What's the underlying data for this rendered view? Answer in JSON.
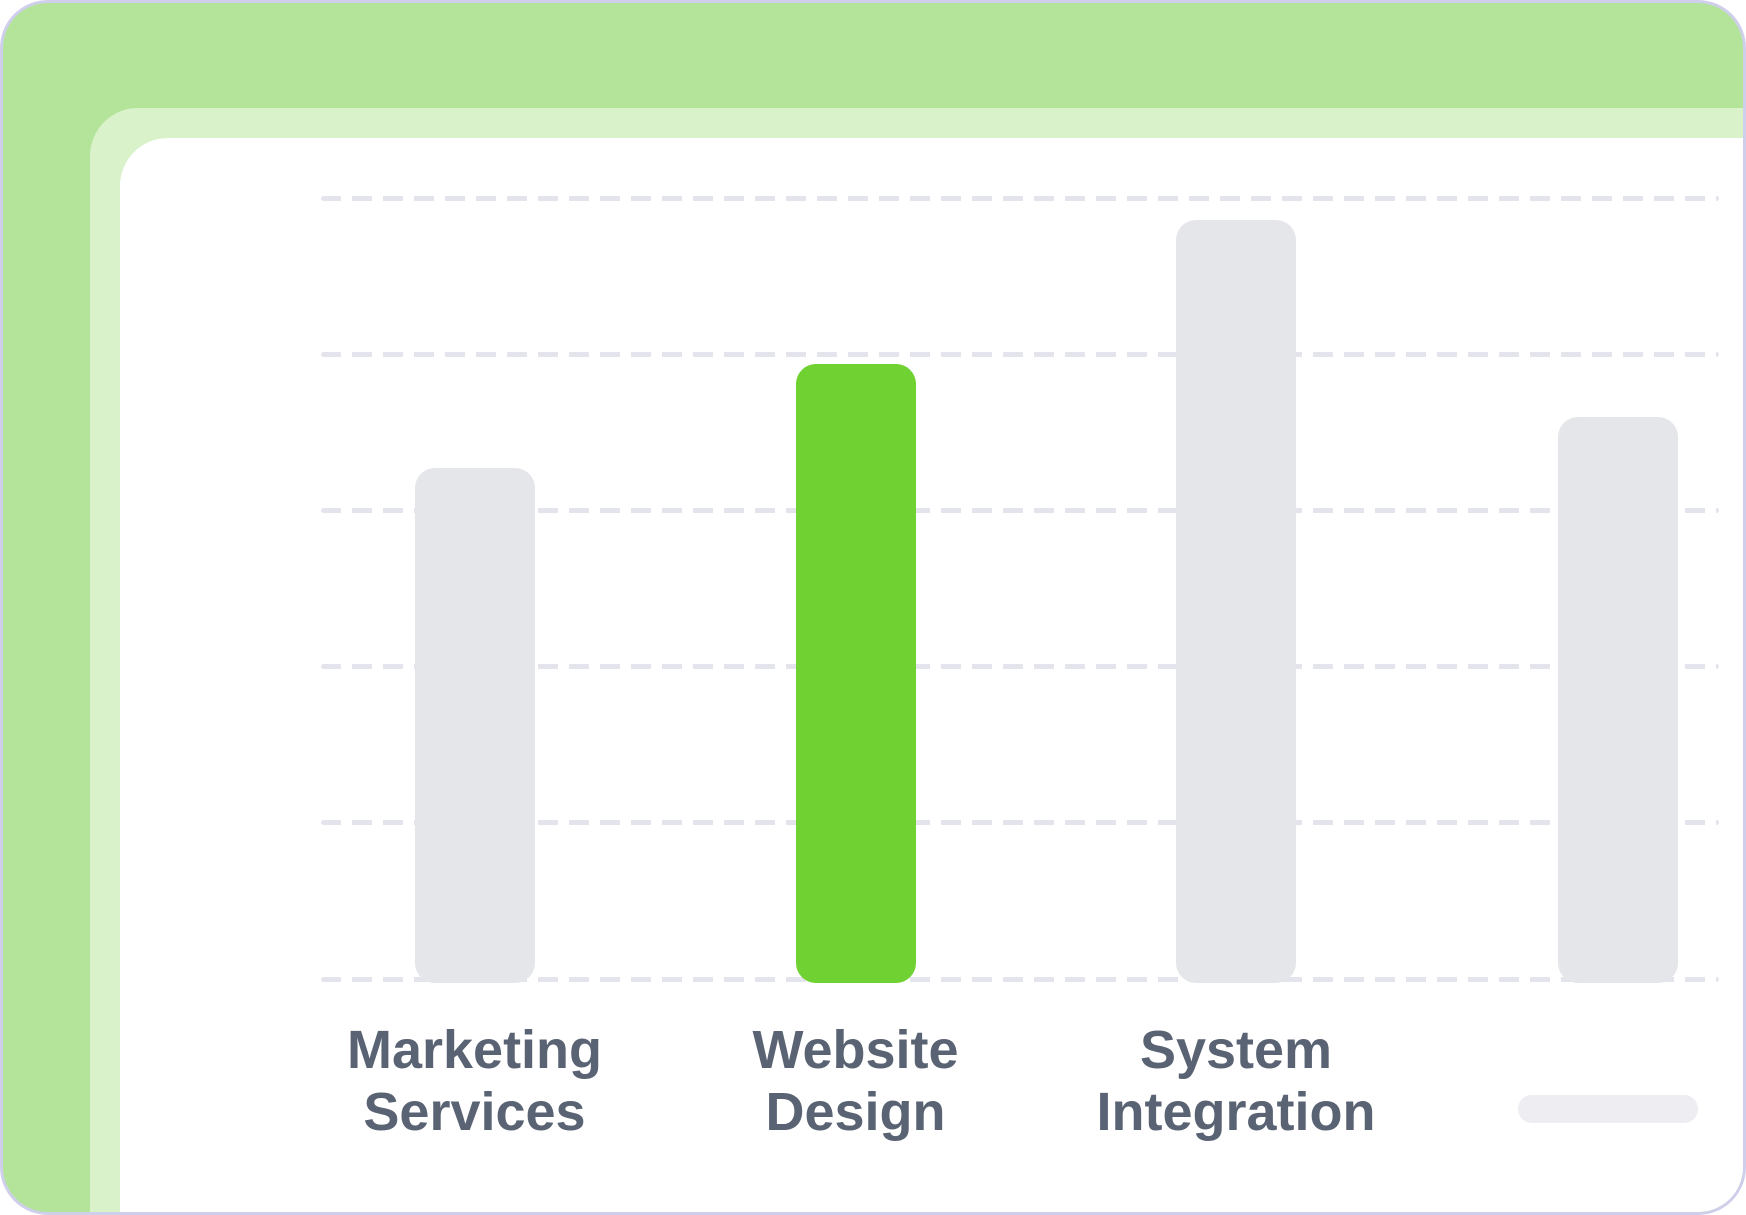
{
  "frame": {
    "border_color": "#cfcfec",
    "green_mid": "#b3e49a",
    "green_light": "#daf2ca",
    "card_color": "#ffffff"
  },
  "chart_data": {
    "type": "bar",
    "title": "",
    "xlabel": "",
    "ylabel": "",
    "categories": [
      "Marketing Services",
      "Website Design",
      "System Integration",
      ""
    ],
    "category_lines": [
      [
        "Marketing",
        "Services"
      ],
      [
        "Website",
        "Design"
      ],
      [
        "System",
        "Integration"
      ],
      null
    ],
    "values": [
      3.27,
      3.94,
      4.86,
      3.6
    ],
    "ylim": [
      0,
      5
    ],
    "gridlines": [
      1,
      2,
      3,
      4,
      5
    ],
    "grid_style": "dashed",
    "legend": "none",
    "highlight_index": 1,
    "bar_color_default": "#e5e6ea",
    "bar_color_highlight": "#70d133",
    "gridline_color": "#e4e4ec",
    "label_color": "#5a6373",
    "skeleton_pill_color": "#ededf2",
    "fourth_label_is_skeleton": true
  }
}
